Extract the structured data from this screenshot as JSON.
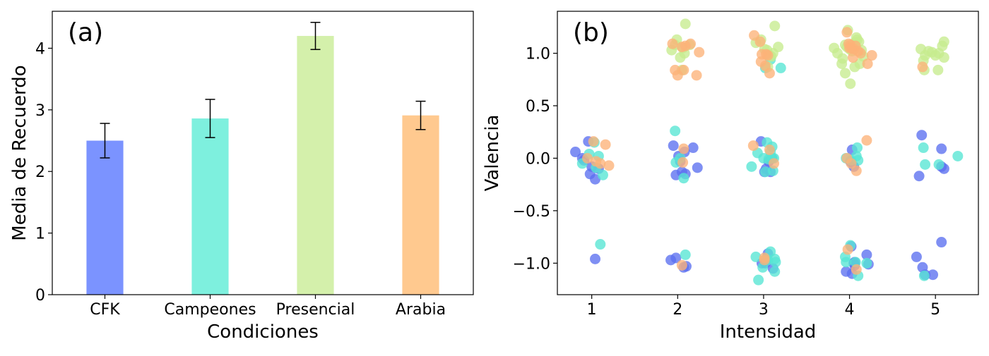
{
  "chart_data": [
    {
      "type": "bar",
      "panel_label": "(a)",
      "categories": [
        "CFK",
        "Campeones",
        "Presencial",
        "Arabia"
      ],
      "values": [
        2.5,
        2.86,
        4.2,
        2.91
      ],
      "errors": [
        0.28,
        0.31,
        0.22,
        0.23
      ],
      "colors": [
        "#7b93ff",
        "#7ef0de",
        "#d4f0ab",
        "#ffc98f"
      ],
      "xlabel": "Condiciones",
      "ylabel": "Media de Recuerdo",
      "ylim": [
        0,
        4.6
      ],
      "yticks": [
        0,
        1,
        2,
        3,
        4
      ],
      "grid": false
    },
    {
      "type": "scatter",
      "panel_label": "(b)",
      "xlabel": "Intensidad",
      "ylabel": "Valencia",
      "xlim": [
        0.6,
        5.5
      ],
      "ylim": [
        -1.3,
        1.4
      ],
      "xticks": [
        1,
        2,
        3,
        4,
        5
      ],
      "yticks": [
        -1.0,
        -0.5,
        0.0,
        0.5,
        1.0
      ],
      "yticklabels": [
        "−1.0",
        "−0.5",
        "0.0",
        "0.5",
        "1.0"
      ],
      "grid": false,
      "series": [
        {
          "color": "#5b6ff0",
          "points": [
            [
              0.81,
              0.06
            ],
            [
              0.89,
              0.0
            ],
            [
              0.96,
              0.16
            ],
            [
              0.98,
              -0.15
            ],
            [
              1.0,
              -0.08
            ],
            [
              1.04,
              -0.2
            ],
            [
              1.08,
              -0.1
            ],
            [
              0.91,
              -0.02
            ],
            [
              1.04,
              -0.96
            ],
            [
              1.95,
              0.12
            ],
            [
              2.01,
              0.02
            ],
            [
              2.08,
              0.06
            ],
            [
              2.18,
              0.1
            ],
            [
              2.23,
              -0.09
            ],
            [
              1.98,
              -0.16
            ],
            [
              2.05,
              -0.13
            ],
            [
              2.09,
              -0.15
            ],
            [
              2.03,
              -0.03
            ],
            [
              1.92,
              -0.97
            ],
            [
              1.98,
              -0.95
            ],
            [
              2.07,
              -1.04
            ],
            [
              2.1,
              -1.03
            ],
            [
              2.97,
              0.16
            ],
            [
              3.03,
              -0.1
            ],
            [
              3.08,
              -0.13
            ],
            [
              3.01,
              -0.13
            ],
            [
              3.06,
              -0.03
            ],
            [
              3.1,
              0.0
            ],
            [
              2.98,
              -1.0
            ],
            [
              3.05,
              -0.91
            ],
            [
              3.11,
              -1.05
            ],
            [
              3.02,
              -1.0
            ],
            [
              4.03,
              0.08
            ],
            [
              4.05,
              -0.08
            ],
            [
              4.01,
              -0.03
            ],
            [
              3.96,
              -1.08
            ],
            [
              4.02,
              -0.84
            ],
            [
              4.03,
              -1.1
            ],
            [
              4.06,
              -1.02
            ],
            [
              4.06,
              -0.99
            ],
            [
              4.05,
              -1.0
            ],
            [
              4.2,
              -0.92
            ],
            [
              4.22,
              -1.01
            ],
            [
              4.81,
              -0.17
            ],
            [
              4.84,
              0.22
            ],
            [
              5.07,
              0.09
            ],
            [
              5.07,
              -0.08
            ],
            [
              5.1,
              -0.1
            ],
            [
              4.78,
              -0.94
            ],
            [
              4.88,
              -1.11
            ],
            [
              4.85,
              -1.04
            ],
            [
              4.97,
              -1.11
            ],
            [
              5.07,
              -0.8
            ]
          ]
        },
        {
          "color": "#56e6d4",
          "points": [
            [
              0.89,
              -0.05
            ],
            [
              0.97,
              0.04
            ],
            [
              1.03,
              0.15
            ],
            [
              1.08,
              0.02
            ],
            [
              1.13,
              -0.16
            ],
            [
              1.05,
              -0.09
            ],
            [
              1.1,
              -0.82
            ],
            [
              2.03,
              0.0
            ],
            [
              1.97,
              0.26
            ],
            [
              2.07,
              -0.19
            ],
            [
              1.98,
              -0.04
            ],
            [
              2.09,
              -0.92
            ],
            [
              2.86,
              -0.08
            ],
            [
              2.93,
              0.05
            ],
            [
              3.0,
              0.0
            ],
            [
              3.04,
              0.15
            ],
            [
              3.06,
              -0.01
            ],
            [
              3.08,
              0.06
            ],
            [
              3.1,
              0.11
            ],
            [
              3.12,
              0.0
            ],
            [
              3.1,
              0.0
            ],
            [
              3.02,
              -0.13
            ],
            [
              3.11,
              -0.12
            ],
            [
              2.91,
              -0.94
            ],
            [
              2.99,
              -1.04
            ],
            [
              3.03,
              -0.96
            ],
            [
              3.05,
              -0.97
            ],
            [
              3.08,
              -0.89
            ],
            [
              3.13,
              -0.96
            ],
            [
              3.14,
              -0.99
            ],
            [
              3.13,
              -1.08
            ],
            [
              2.94,
              -1.16
            ],
            [
              3.08,
              0.94
            ],
            [
              3.02,
              0.86
            ],
            [
              3.2,
              0.86
            ],
            [
              3.96,
              -0.0
            ],
            [
              4.02,
              -0.02
            ],
            [
              4.09,
              0.1
            ],
            [
              4.1,
              -0.02
            ],
            [
              4.08,
              0.02
            ],
            [
              3.95,
              -0.94
            ],
            [
              3.96,
              -0.99
            ],
            [
              4.01,
              -0.83
            ],
            [
              4.07,
              -0.99
            ],
            [
              4.1,
              -1.12
            ],
            [
              4.2,
              -1.0
            ],
            [
              4.86,
              0.1
            ],
            [
              4.88,
              -0.06
            ],
            [
              5.04,
              -0.06
            ],
            [
              5.26,
              0.02
            ],
            [
              4.87,
              -1.12
            ]
          ]
        },
        {
          "color": "#c6ec8e",
          "points": [
            [
              1.93,
              1.03
            ],
            [
              1.97,
              1.08
            ],
            [
              1.99,
              1.13
            ],
            [
              2.03,
              0.96
            ],
            [
              2.06,
              1.05
            ],
            [
              2.08,
              1.0
            ],
            [
              2.14,
              1.08
            ],
            [
              2.05,
              0.84
            ],
            [
              2.09,
              1.28
            ],
            [
              2.91,
              1.1
            ],
            [
              2.97,
              1.13
            ],
            [
              3.01,
              1.04
            ],
            [
              3.04,
              1.03
            ],
            [
              3.09,
              0.97
            ],
            [
              3.11,
              1.0
            ],
            [
              3.13,
              1.26
            ],
            [
              3.17,
              1.06
            ],
            [
              3.05,
              0.87
            ],
            [
              3.07,
              0.98
            ],
            [
              3.82,
              1.05
            ],
            [
              3.86,
              1.0
            ],
            [
              3.92,
              0.95
            ],
            [
              3.95,
              1.08
            ],
            [
              3.97,
              1.06
            ],
            [
              4.0,
              1.04
            ],
            [
              4.03,
              1.02
            ],
            [
              4.06,
              1.1
            ],
            [
              4.09,
              1.13
            ],
            [
              4.11,
              1.11
            ],
            [
              4.14,
              1.03
            ],
            [
              4.16,
              0.97
            ],
            [
              4.06,
              0.87
            ],
            [
              3.98,
              1.22
            ],
            [
              4.08,
              1.15
            ],
            [
              3.95,
              0.81
            ],
            [
              3.91,
              0.9
            ],
            [
              4.12,
              0.9
            ],
            [
              4.01,
              0.71
            ],
            [
              4.83,
              1.04
            ],
            [
              4.86,
              0.93
            ],
            [
              4.88,
              0.98
            ],
            [
              4.92,
              1.02
            ],
            [
              4.96,
              1.01
            ],
            [
              5.0,
              0.98
            ],
            [
              5.04,
              1.0
            ],
            [
              5.08,
              1.07
            ],
            [
              5.1,
              1.11
            ],
            [
              5.1,
              0.96
            ],
            [
              5.03,
              0.84
            ],
            [
              4.87,
              0.84
            ]
          ]
        },
        {
          "color": "#fcb278",
          "points": [
            [
              0.95,
              0.0
            ],
            [
              1.02,
              0.16
            ],
            [
              1.05,
              -0.03
            ],
            [
              1.1,
              -0.05
            ],
            [
              1.16,
              0.13
            ],
            [
              1.2,
              -0.07
            ],
            [
              2.07,
              0.09
            ],
            [
              2.06,
              -0.04
            ],
            [
              2.05,
              -1.02
            ],
            [
              1.94,
              1.09
            ],
            [
              2.05,
              1.06
            ],
            [
              2.09,
              1.07
            ],
            [
              2.15,
              1.09
            ],
            [
              2.25,
              1.01
            ],
            [
              1.97,
              0.84
            ],
            [
              2.07,
              0.84
            ],
            [
              2.22,
              0.79
            ],
            [
              2.0,
              0.79
            ],
            [
              2.88,
              0.12
            ],
            [
              3.07,
              0.08
            ],
            [
              3.12,
              -0.05
            ],
            [
              3.01,
              -0.95
            ],
            [
              3.01,
              -0.97
            ],
            [
              2.89,
              1.17
            ],
            [
              2.96,
              1.11
            ],
            [
              2.98,
              0.99
            ],
            [
              3.03,
              0.99
            ],
            [
              3.05,
              0.98
            ],
            [
              2.97,
              0.92
            ],
            [
              3.02,
              0.88
            ],
            [
              3.07,
              0.81
            ],
            [
              3.97,
              0.0
            ],
            [
              4.02,
              -0.05
            ],
            [
              4.08,
              -0.12
            ],
            [
              4.2,
              0.17
            ],
            [
              3.98,
              -0.87
            ],
            [
              4.08,
              -1.06
            ],
            [
              3.97,
              1.2
            ],
            [
              3.99,
              1.09
            ],
            [
              4.01,
              1.08
            ],
            [
              4.02,
              1.05
            ],
            [
              4.05,
              1.04
            ],
            [
              4.07,
              1.07
            ],
            [
              4.1,
              1.02
            ],
            [
              4.13,
              1.0
            ],
            [
              4.26,
              0.98
            ],
            [
              4.21,
              0.9
            ],
            [
              4.04,
              0.96
            ],
            [
              4.0,
              1.05
            ],
            [
              4.85,
              0.87
            ]
          ]
        }
      ]
    }
  ]
}
